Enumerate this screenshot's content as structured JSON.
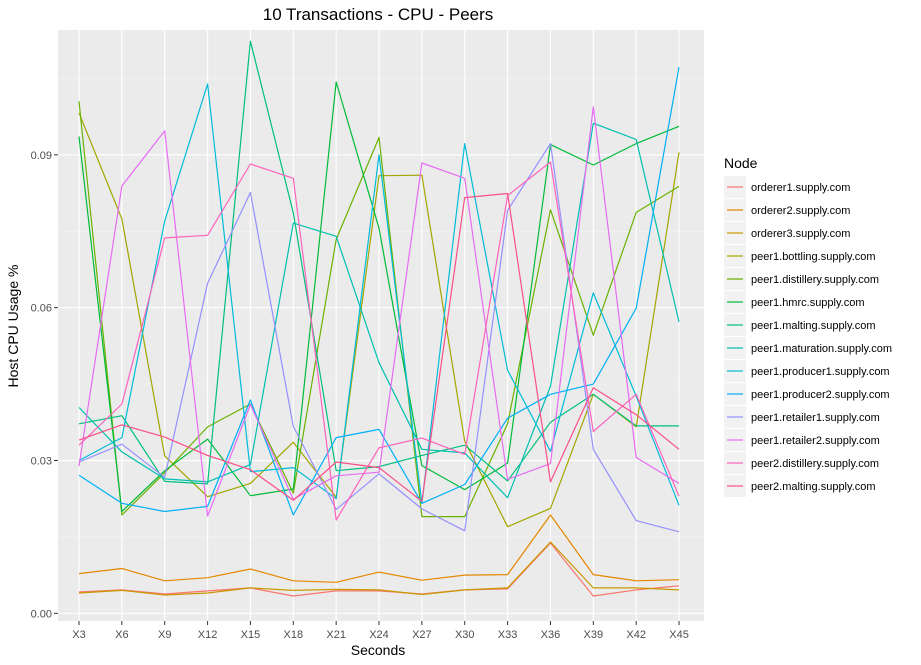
{
  "chart_data": {
    "type": "line",
    "title": "10 Transactions - CPU - Peers",
    "xlabel": "Seconds",
    "ylabel": "Host CPU Usage %",
    "ylim": [
      -0.0015,
      0.1145
    ],
    "yticks": [
      0.0,
      0.03,
      0.06,
      0.09
    ],
    "ytick_labels": [
      "0.00",
      "0.03",
      "0.06",
      "0.09"
    ],
    "categories": [
      "X3",
      "X6",
      "X9",
      "X12",
      "X15",
      "X18",
      "X21",
      "X24",
      "X27",
      "X30",
      "X33",
      "X36",
      "X39",
      "X42",
      "X45"
    ],
    "grid": true,
    "legend_position": "right",
    "legend_title": "Node",
    "series": [
      {
        "name": "orderer1.supply.com",
        "color": "#F8766D",
        "values": [
          0.0042,
          0.0046,
          0.0038,
          0.0044,
          0.005,
          0.0034,
          0.0044,
          0.0044,
          0.0038,
          0.0046,
          0.0048,
          0.0138,
          0.0034,
          0.0046,
          0.0054
        ]
      },
      {
        "name": "orderer2.supply.com",
        "color": "#E58700",
        "values": [
          0.0078,
          0.0088,
          0.0064,
          0.007,
          0.0087,
          0.0064,
          0.0061,
          0.0081,
          0.0065,
          0.0075,
          0.0076,
          0.0193,
          0.0076,
          0.0064,
          0.0066
        ]
      },
      {
        "name": "orderer3.supply.com",
        "color": "#C99800",
        "values": [
          0.004,
          0.0045,
          0.0036,
          0.004,
          0.005,
          0.0045,
          0.0047,
          0.0046,
          0.0037,
          0.0046,
          0.005,
          0.014,
          0.005,
          0.005,
          0.0046
        ]
      },
      {
        "name": "peer1.bottling.supply.com",
        "color": "#A3A500",
        "values": [
          0.0982,
          0.0774,
          0.0309,
          0.0229,
          0.0255,
          0.0336,
          0.0228,
          0.0859,
          0.086,
          0.0338,
          0.017,
          0.0206,
          0.043,
          0.0366,
          0.0905
        ]
      },
      {
        "name": "peer1.distillery.supply.com",
        "color": "#6BB100",
        "values": [
          0.1005,
          0.0193,
          0.0276,
          0.0366,
          0.0411,
          0.0236,
          0.0734,
          0.0934,
          0.019,
          0.019,
          0.0372,
          0.0792,
          0.0546,
          0.0787,
          0.0838
        ]
      },
      {
        "name": "peer1.hmrc.supply.com",
        "color": "#00BA38",
        "values": [
          0.0936,
          0.02,
          0.028,
          0.0342,
          0.0231,
          0.0244,
          0.1043,
          0.0756,
          0.029,
          0.0243,
          0.0295,
          0.092,
          0.088,
          0.0922,
          0.0956
        ]
      },
      {
        "name": "peer1.malting.supply.com",
        "color": "#00BF7D",
        "values": [
          0.0372,
          0.0388,
          0.0259,
          0.0254,
          0.1123,
          0.0786,
          0.028,
          0.0288,
          0.031,
          0.033,
          0.026,
          0.0375,
          0.043,
          0.0368,
          0.0368
        ]
      },
      {
        "name": "peer1.maturation.supply.com",
        "color": "#00C0AF",
        "values": [
          0.0404,
          0.0317,
          0.0264,
          0.0258,
          0.0292,
          0.0766,
          0.074,
          0.0492,
          0.0322,
          0.0315,
          0.0227,
          0.0446,
          0.0962,
          0.093,
          0.0572
        ]
      },
      {
        "name": "peer1.producer1.supply.com",
        "color": "#00BCD8",
        "values": [
          0.03,
          0.0345,
          0.077,
          0.1039,
          0.0278,
          0.0286,
          0.0225,
          0.09,
          0.0216,
          0.0922,
          0.0477,
          0.0318,
          0.0629,
          0.0426,
          0.0212
        ]
      },
      {
        "name": "peer1.producer2.supply.com",
        "color": "#00B0F6",
        "values": [
          0.0271,
          0.0216,
          0.02,
          0.021,
          0.0419,
          0.0193,
          0.0345,
          0.0361,
          0.0216,
          0.0253,
          0.0383,
          0.043,
          0.045,
          0.0599,
          0.1072
        ]
      },
      {
        "name": "peer1.retailer1.supply.com",
        "color": "#9590FF",
        "values": [
          0.0297,
          0.0332,
          0.0267,
          0.0648,
          0.0826,
          0.0367,
          0.0204,
          0.0274,
          0.0205,
          0.0162,
          0.0791,
          0.0922,
          0.0322,
          0.0182,
          0.016
        ]
      },
      {
        "name": "peer1.retailer2.supply.com",
        "color": "#E76BF3",
        "values": [
          0.0289,
          0.0839,
          0.0947,
          0.0191,
          0.041,
          0.0224,
          0.027,
          0.0277,
          0.0884,
          0.0854,
          0.0263,
          0.0294,
          0.0994,
          0.0306,
          0.0255
        ]
      },
      {
        "name": "peer2.distillery.supply.com",
        "color": "#FF62BC",
        "values": [
          0.033,
          0.0411,
          0.0737,
          0.0742,
          0.0882,
          0.0854,
          0.0183,
          0.0325,
          0.0344,
          0.0312,
          0.082,
          0.0886,
          0.0357,
          0.043,
          0.023
        ]
      },
      {
        "name": "peer2.malting.supply.com",
        "color": "#FC4F87",
        "values": [
          0.034,
          0.037,
          0.0346,
          0.031,
          0.0282,
          0.0222,
          0.0297,
          0.0286,
          0.022,
          0.0816,
          0.0824,
          0.0258,
          0.0443,
          0.039,
          0.0322
        ]
      }
    ]
  }
}
